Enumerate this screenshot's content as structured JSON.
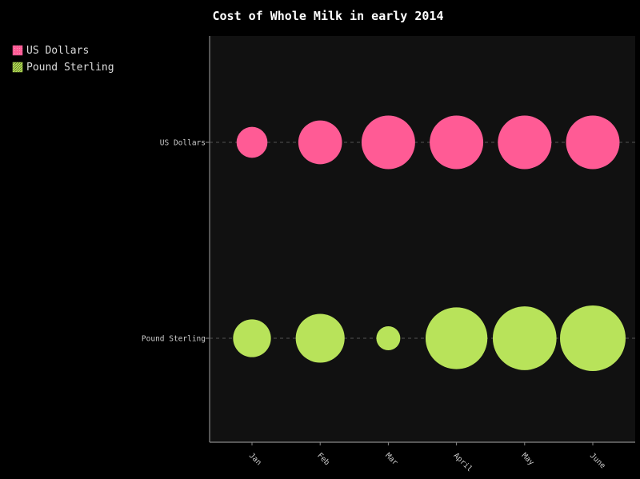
{
  "chart_data": {
    "type": "scatter",
    "title": "Cost of Whole Milk in early 2014",
    "categories": [
      "Jan",
      "Feb",
      "Mar",
      "April",
      "May",
      "June"
    ],
    "rows": [
      "US Dollars",
      "Pound Sterling"
    ],
    "series": [
      {
        "name": "US Dollars",
        "color": "#ff5b95",
        "values": [
          2,
          4,
          6,
          6,
          6,
          6
        ]
      },
      {
        "name": "Pound Sterling",
        "color": "#b8e35a",
        "values": [
          3,
          5,
          1.2,
          8,
          8.5,
          9
        ]
      }
    ],
    "legend": "top-left",
    "grid": "dashed horizontal lines at each category row",
    "plot_background": "#111111"
  }
}
